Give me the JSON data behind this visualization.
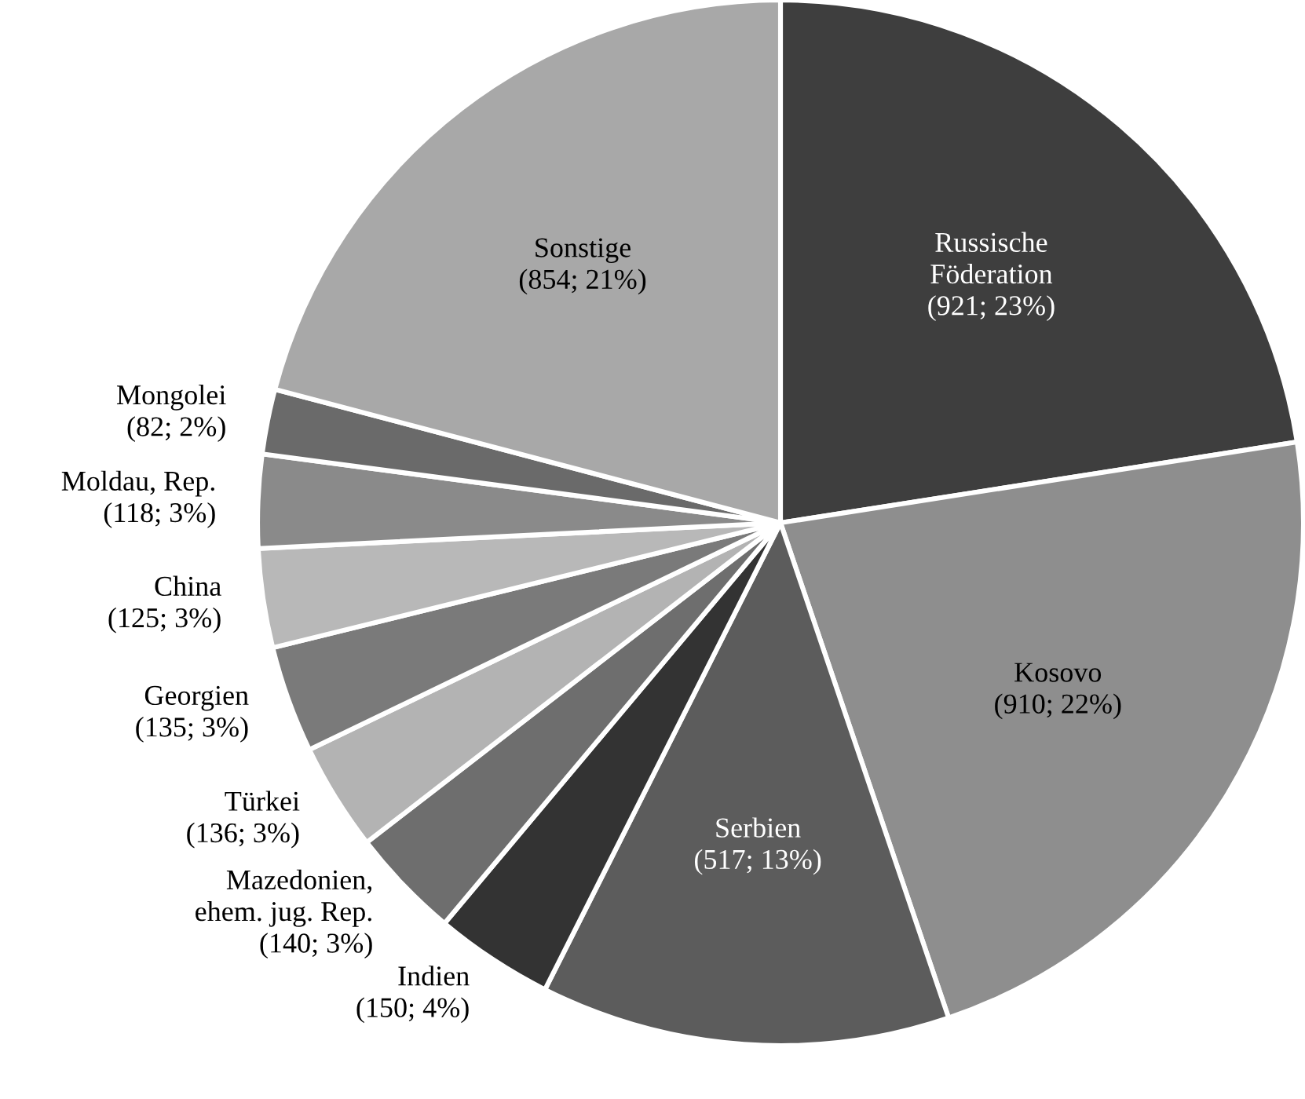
{
  "chart_data": {
    "type": "pie",
    "categories": [
      "Russische\nFöderation",
      "Kosovo",
      "Serbien",
      "Indien",
      "Mazedonien,\nehem. jug. Rep.",
      "Türkei",
      "Georgien",
      "China",
      "Moldau, Rep.",
      "Mongolei",
      "Sonstige"
    ],
    "values": [
      921,
      910,
      517,
      150,
      140,
      136,
      135,
      125,
      118,
      82,
      854
    ],
    "value_labels": [
      "(921; 23%)",
      "(910; 22%)",
      "(517; 13%)",
      "(150; 4%)",
      "(140; 3%)",
      "(136; 3%)",
      "(135; 3%)",
      "(125; 3%)",
      "(118; 3%)",
      "(82; 2%)",
      "(854; 21%)"
    ],
    "colors": [
      "#3e3e3e",
      "#8e8e8e",
      "#5c5c5c",
      "#333333",
      "#6e6e6e",
      "#b3b3b3",
      "#7a7a7a",
      "#b8b8b8",
      "#8a8a8a",
      "#6a6a6a",
      "#a8a8a8"
    ]
  }
}
